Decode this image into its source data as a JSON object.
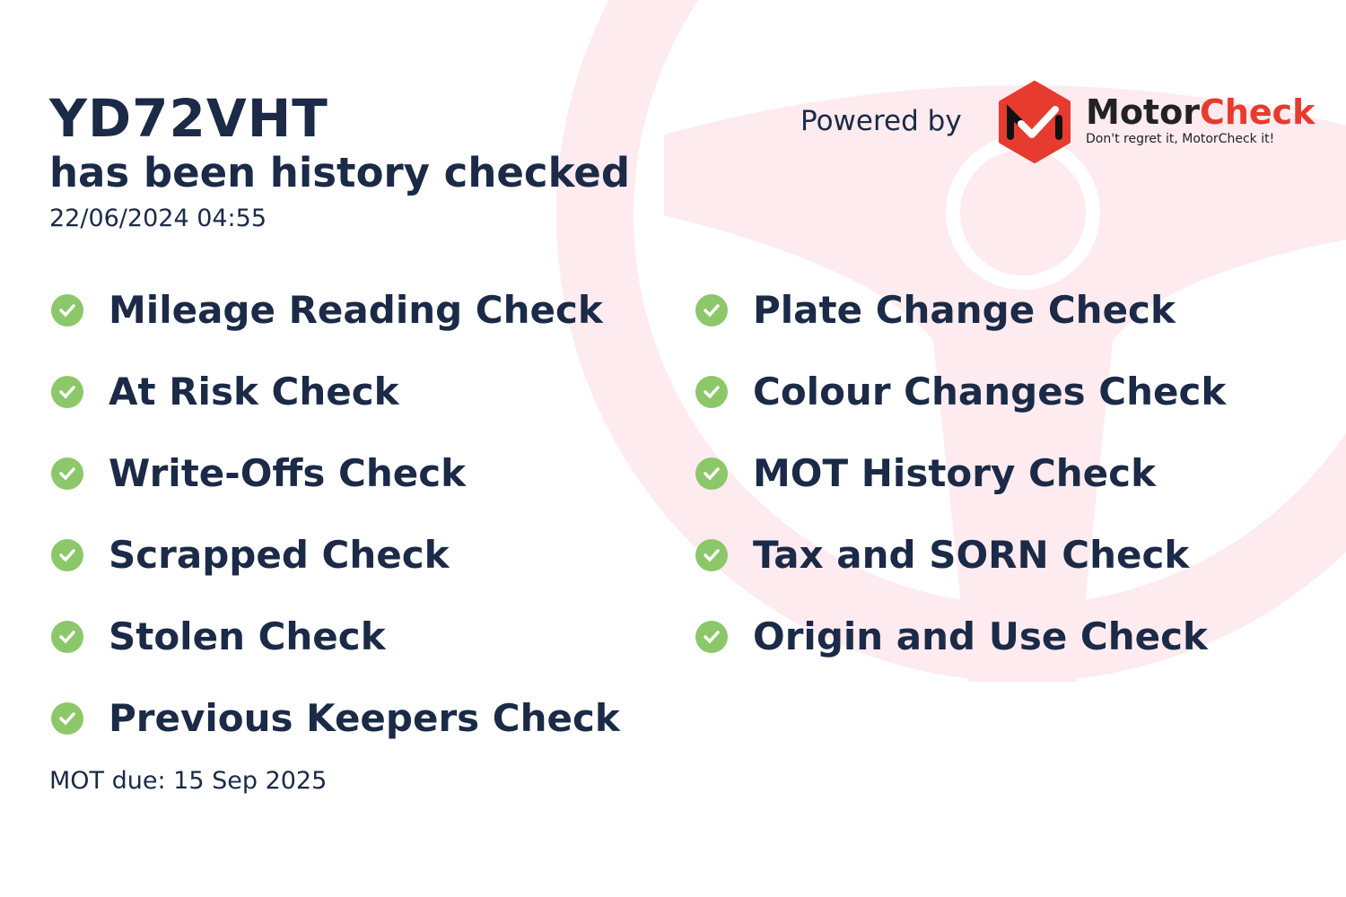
{
  "header": {
    "plate": "YD72VHT",
    "subtitle": "has been history checked",
    "datetime": "22/06/2024 04:55"
  },
  "branding": {
    "powered_by": "Powered by",
    "brand_part1": "Motor",
    "brand_part2": "Check",
    "tagline": "Don't regret it, MotorCheck it!",
    "logo_icon": "motorcheck-hexagon-logo",
    "brand_color": "#e63b2e"
  },
  "checks_left": [
    "Mileage Reading Check",
    "At Risk Check",
    "Write-Offs Check",
    "Scrapped Check",
    "Stolen Check",
    "Previous Keepers Check"
  ],
  "checks_right": [
    "Plate Change Check",
    "Colour Changes Check",
    "MOT History Check",
    "Tax and SORN Check",
    "Origin and Use Check"
  ],
  "check_icon": "check-circle-icon",
  "colors": {
    "text": "#1b2a47",
    "check": "#8cc76a",
    "background_wheel": "#fdebef"
  },
  "footer": {
    "mot_due": "MOT due: 15 Sep 2025"
  }
}
